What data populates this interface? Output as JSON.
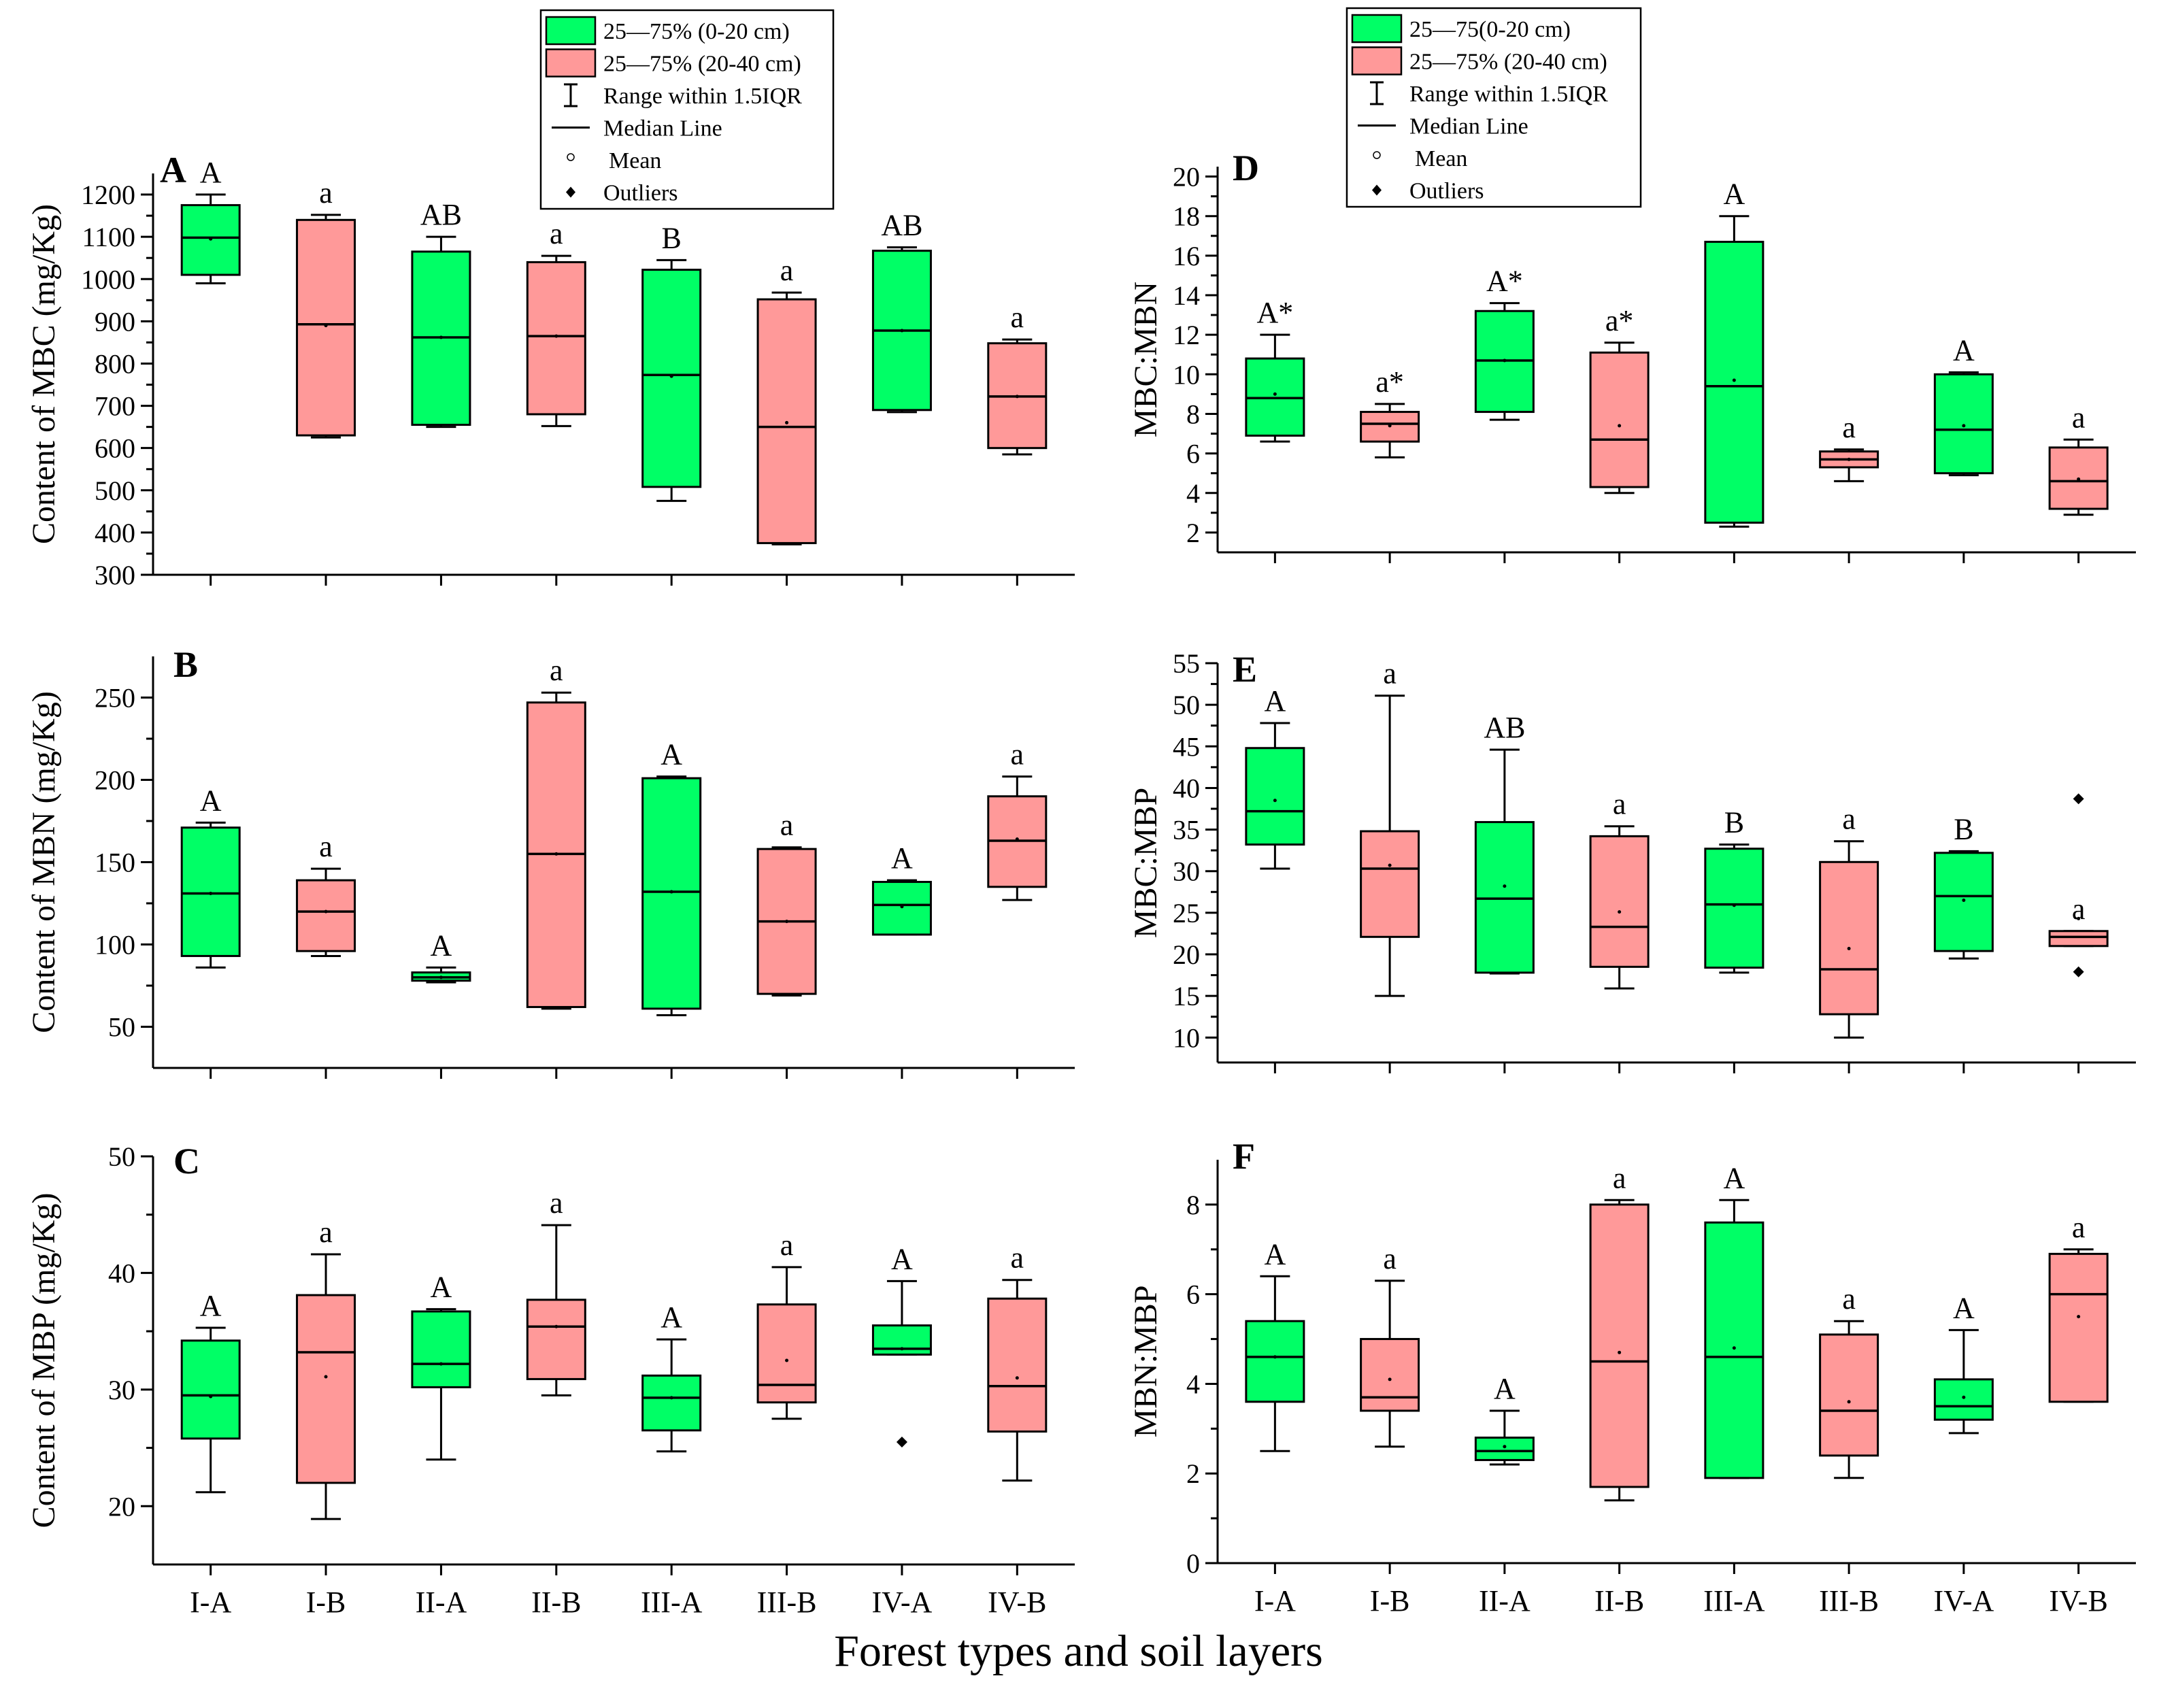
{
  "colors": {
    "green": "#00ff66",
    "pink": "#ff9999",
    "ink": "#000000"
  },
  "x_axis_title": "Forest types and soil layers",
  "legends": [
    {
      "id": "left",
      "items": [
        {
          "kind": "box",
          "color": "#00ff66",
          "label": "25—75% (0-20 cm)"
        },
        {
          "kind": "box",
          "color": "#ff9999",
          "label": "25—75% (20-40 cm)"
        },
        {
          "kind": "range",
          "label": "Range within 1.5IQR"
        },
        {
          "kind": "median",
          "label": "Median Line"
        },
        {
          "kind": "mean",
          "label": "Mean"
        },
        {
          "kind": "outlier",
          "label": "Outliers"
        }
      ]
    },
    {
      "id": "right",
      "items": [
        {
          "kind": "box",
          "color": "#00ff66",
          "label": "25—75(0-20 cm)"
        },
        {
          "kind": "box",
          "color": "#ff9999",
          "label": "25—75% (20-40 cm)"
        },
        {
          "kind": "range",
          "label": "Range within 1.5IQR"
        },
        {
          "kind": "median",
          "label": "Median Line"
        },
        {
          "kind": "mean",
          "label": "Mean"
        },
        {
          "kind": "outlier",
          "label": "Outliers"
        }
      ]
    }
  ],
  "chart_data": [
    {
      "type": "box",
      "panel": "A",
      "ylabel": "Content of MBC (mg/Kg)",
      "ylim": [
        300,
        1250
      ],
      "yticks": [
        300,
        400,
        500,
        600,
        700,
        800,
        900,
        1000,
        1100,
        1200
      ],
      "categories": [
        "I-A",
        "I-B",
        "II-A",
        "II-B",
        "III-A",
        "III-B",
        "IV-A",
        "IV-B"
      ],
      "show_xticklabels": false,
      "boxes": [
        {
          "layer": "0-20 cm",
          "whisker_low": 990,
          "q1": 1010,
          "median": 1098,
          "q3": 1175,
          "whisker_high": 1200,
          "mean": 1095,
          "letter": "A"
        },
        {
          "layer": "20-40 cm",
          "whisker_low": 625,
          "q1": 630,
          "median": 893,
          "q3": 1140,
          "whisker_high": 1152,
          "mean": 890,
          "letter": "a"
        },
        {
          "layer": "0-20 cm",
          "whisker_low": 650,
          "q1": 655,
          "median": 862,
          "q3": 1065,
          "whisker_high": 1100,
          "mean": 862,
          "letter": "AB"
        },
        {
          "layer": "20-40 cm",
          "whisker_low": 652,
          "q1": 680,
          "median": 865,
          "q3": 1040,
          "whisker_high": 1055,
          "mean": 865,
          "letter": "a"
        },
        {
          "layer": "0-20 cm",
          "whisker_low": 475,
          "q1": 508,
          "median": 773,
          "q3": 1022,
          "whisker_high": 1045,
          "mean": 770,
          "letter": "B"
        },
        {
          "layer": "20-40 cm",
          "whisker_low": 372,
          "q1": 375,
          "median": 650,
          "q3": 952,
          "whisker_high": 968,
          "mean": 660,
          "letter": "a"
        },
        {
          "layer": "0-20 cm",
          "whisker_low": 685,
          "q1": 690,
          "median": 878,
          "q3": 1067,
          "whisker_high": 1075,
          "mean": 878,
          "letter": "AB"
        },
        {
          "layer": "20-40 cm",
          "whisker_low": 585,
          "q1": 600,
          "median": 722,
          "q3": 848,
          "whisker_high": 857,
          "mean": 722,
          "letter": "a"
        }
      ]
    },
    {
      "type": "box",
      "panel": "B",
      "ylabel": "Content of MBN (mg/Kg)",
      "ylim": [
        25,
        275
      ],
      "yticks": [
        50,
        100,
        150,
        200,
        250
      ],
      "categories": [
        "I-A",
        "I-B",
        "II-A",
        "II-B",
        "III-A",
        "III-B",
        "IV-A",
        "IV-B"
      ],
      "show_xticklabels": false,
      "boxes": [
        {
          "layer": "0-20 cm",
          "whisker_low": 86,
          "q1": 93,
          "median": 131,
          "q3": 171,
          "whisker_high": 174,
          "mean": 131,
          "letter": "A"
        },
        {
          "layer": "20-40 cm",
          "whisker_low": 93,
          "q1": 96,
          "median": 120,
          "q3": 139,
          "whisker_high": 146,
          "mean": 120,
          "letter": "a"
        },
        {
          "layer": "0-20 cm",
          "whisker_low": 77,
          "q1": 78,
          "median": 80,
          "q3": 83,
          "whisker_high": 86,
          "mean": 80,
          "letter": "A"
        },
        {
          "layer": "20-40 cm",
          "whisker_low": 61,
          "q1": 62,
          "median": 155,
          "q3": 247,
          "whisker_high": 253,
          "mean": 155,
          "letter": "a"
        },
        {
          "layer": "0-20 cm",
          "whisker_low": 57,
          "q1": 61,
          "median": 132,
          "q3": 201,
          "whisker_high": 202,
          "mean": 132,
          "letter": "A"
        },
        {
          "layer": "20-40 cm",
          "whisker_low": 69,
          "q1": 70,
          "median": 114,
          "q3": 158,
          "whisker_high": 159,
          "mean": 114,
          "letter": "a"
        },
        {
          "layer": "0-20 cm",
          "whisker_low": 106,
          "q1": 106,
          "median": 124,
          "q3": 138,
          "whisker_high": 139,
          "mean": 123,
          "letter": "A"
        },
        {
          "layer": "20-40 cm",
          "whisker_low": 127,
          "q1": 135,
          "median": 163,
          "q3": 190,
          "whisker_high": 202,
          "mean": 164,
          "letter": "a"
        }
      ]
    },
    {
      "type": "box",
      "panel": "C",
      "ylabel": "Content of MBP (mg/Kg)",
      "ylim": [
        15,
        50
      ],
      "yticks": [
        20,
        30,
        40,
        50
      ],
      "categories": [
        "I-A",
        "I-B",
        "II-A",
        "II-B",
        "III-A",
        "III-B",
        "IV-A",
        "IV-B"
      ],
      "show_xticklabels": true,
      "boxes": [
        {
          "layer": "0-20 cm",
          "whisker_low": 21.2,
          "q1": 25.8,
          "median": 29.5,
          "q3": 34.2,
          "whisker_high": 35.3,
          "mean": 29.4,
          "letter": "A"
        },
        {
          "layer": "20-40 cm",
          "whisker_low": 18.9,
          "q1": 22.0,
          "median": 33.2,
          "q3": 38.1,
          "whisker_high": 41.6,
          "mean": 31.1,
          "letter": "a"
        },
        {
          "layer": "0-20 cm",
          "whisker_low": 24.0,
          "q1": 30.2,
          "median": 32.2,
          "q3": 36.7,
          "whisker_high": 36.9,
          "mean": 32.2,
          "letter": "A"
        },
        {
          "layer": "20-40 cm",
          "whisker_low": 29.5,
          "q1": 30.9,
          "median": 35.4,
          "q3": 37.7,
          "whisker_high": 44.1,
          "mean": 35.4,
          "letter": "a"
        },
        {
          "layer": "0-20 cm",
          "whisker_low": 24.7,
          "q1": 26.5,
          "median": 29.3,
          "q3": 31.2,
          "whisker_high": 34.3,
          "mean": 29.3,
          "letter": "A"
        },
        {
          "layer": "20-40 cm",
          "whisker_low": 27.5,
          "q1": 28.9,
          "median": 30.4,
          "q3": 37.3,
          "whisker_high": 40.5,
          "mean": 32.5,
          "letter": "a"
        },
        {
          "layer": "0-20 cm",
          "whisker_low": 33.0,
          "q1": 33.0,
          "median": 33.5,
          "q3": 35.5,
          "whisker_high": 39.3,
          "mean": 33.5,
          "outliers": [
            25.5
          ],
          "letter": "A"
        },
        {
          "layer": "20-40 cm",
          "whisker_low": 22.2,
          "q1": 26.4,
          "median": 30.3,
          "q3": 37.8,
          "whisker_high": 39.4,
          "mean": 31.0,
          "letter": "a"
        }
      ]
    },
    {
      "type": "box",
      "panel": "D",
      "ylabel": "MBC:MBN",
      "ylim": [
        1,
        20.5
      ],
      "yticks": [
        2,
        4,
        6,
        8,
        10,
        12,
        14,
        16,
        18,
        20
      ],
      "categories": [
        "I-A",
        "I-B",
        "II-A",
        "II-B",
        "III-A",
        "III-B",
        "IV-A",
        "IV-B"
      ],
      "show_xticklabels": false,
      "boxes": [
        {
          "layer": "0-20 cm",
          "whisker_low": 6.6,
          "q1": 6.9,
          "median": 8.8,
          "q3": 10.8,
          "whisker_high": 12.0,
          "mean": 9.0,
          "letter": "A*"
        },
        {
          "layer": "20-40 cm",
          "whisker_low": 5.8,
          "q1": 6.6,
          "median": 7.5,
          "q3": 8.1,
          "whisker_high": 8.5,
          "mean": 7.4,
          "letter": "a*"
        },
        {
          "layer": "0-20 cm",
          "whisker_low": 7.7,
          "q1": 8.1,
          "median": 10.7,
          "q3": 13.2,
          "whisker_high": 13.6,
          "mean": 10.7,
          "letter": "A*"
        },
        {
          "layer": "20-40 cm",
          "whisker_low": 4.0,
          "q1": 4.3,
          "median": 6.7,
          "q3": 11.1,
          "whisker_high": 11.6,
          "mean": 7.4,
          "letter": "a*"
        },
        {
          "layer": "0-20 cm",
          "whisker_low": 2.3,
          "q1": 2.5,
          "median": 9.4,
          "q3": 16.7,
          "whisker_high": 18.0,
          "mean": 9.7,
          "letter": "A"
        },
        {
          "layer": "20-40 cm",
          "whisker_low": 4.6,
          "q1": 5.3,
          "median": 5.7,
          "q3": 6.1,
          "whisker_high": 6.2,
          "mean": 5.7,
          "letter": "a"
        },
        {
          "layer": "0-20 cm",
          "whisker_low": 4.9,
          "q1": 5.0,
          "median": 7.2,
          "q3": 10.0,
          "whisker_high": 10.1,
          "mean": 7.4,
          "letter": "A"
        },
        {
          "layer": "20-40 cm",
          "whisker_low": 2.9,
          "q1": 3.2,
          "median": 4.6,
          "q3": 6.3,
          "whisker_high": 6.7,
          "mean": 4.7,
          "letter": "a"
        }
      ]
    },
    {
      "type": "box",
      "panel": "E",
      "ylabel": "MBC:MBP",
      "ylim": [
        7,
        55
      ],
      "yticks": [
        10,
        15,
        20,
        25,
        30,
        35,
        40,
        45,
        50,
        55
      ],
      "categories": [
        "I-A",
        "I-B",
        "II-A",
        "II-B",
        "III-A",
        "III-B",
        "IV-A",
        "IV-B"
      ],
      "show_xticklabels": false,
      "boxes": [
        {
          "layer": "0-20 cm",
          "whisker_low": 30.3,
          "q1": 33.2,
          "median": 37.2,
          "q3": 44.8,
          "whisker_high": 47.8,
          "mean": 38.5,
          "letter": "A"
        },
        {
          "layer": "20-40 cm",
          "whisker_low": 15.0,
          "q1": 22.1,
          "median": 30.3,
          "q3": 34.8,
          "whisker_high": 51.1,
          "mean": 30.7,
          "letter": "a"
        },
        {
          "layer": "0-20 cm",
          "whisker_low": 17.7,
          "q1": 17.8,
          "median": 26.7,
          "q3": 35.9,
          "whisker_high": 44.6,
          "mean": 28.2,
          "letter": "AB"
        },
        {
          "layer": "20-40 cm",
          "whisker_low": 15.9,
          "q1": 18.5,
          "median": 23.3,
          "q3": 34.2,
          "whisker_high": 35.4,
          "mean": 25.1,
          "letter": "a"
        },
        {
          "layer": "0-20 cm",
          "whisker_low": 17.8,
          "q1": 18.4,
          "median": 26.0,
          "q3": 32.7,
          "whisker_high": 33.2,
          "mean": 25.9,
          "letter": "B"
        },
        {
          "layer": "20-40 cm",
          "whisker_low": 10.0,
          "q1": 12.8,
          "median": 18.2,
          "q3": 31.1,
          "whisker_high": 33.6,
          "mean": 20.7,
          "letter": "a"
        },
        {
          "layer": "0-20 cm",
          "whisker_low": 19.5,
          "q1": 20.4,
          "median": 27.0,
          "q3": 32.2,
          "whisker_high": 32.4,
          "mean": 26.5,
          "letter": "B"
        },
        {
          "layer": "20-40 cm",
          "whisker_low": 21.0,
          "q1": 21.0,
          "median": 22.1,
          "q3": 22.8,
          "whisker_high": 22.8,
          "mean": 24.3,
          "outliers": [
            38.7,
            17.9
          ],
          "letter": "a"
        }
      ]
    },
    {
      "type": "box",
      "panel": "F",
      "ylabel": "MBN:MBP",
      "ylim": [
        0,
        9
      ],
      "yticks": [
        0,
        2,
        4,
        6,
        8
      ],
      "categories": [
        "I-A",
        "I-B",
        "II-A",
        "II-B",
        "III-A",
        "III-B",
        "IV-A",
        "IV-B"
      ],
      "show_xticklabels": true,
      "boxes": [
        {
          "layer": "0-20 cm",
          "whisker_low": 2.5,
          "q1": 3.6,
          "median": 4.6,
          "q3": 5.4,
          "whisker_high": 6.4,
          "mean": 4.6,
          "letter": "A"
        },
        {
          "layer": "20-40 cm",
          "whisker_low": 2.6,
          "q1": 3.4,
          "median": 3.7,
          "q3": 5.0,
          "whisker_high": 6.3,
          "mean": 4.1,
          "letter": "a"
        },
        {
          "layer": "0-20 cm",
          "whisker_low": 2.2,
          "q1": 2.3,
          "median": 2.5,
          "q3": 2.8,
          "whisker_high": 3.4,
          "mean": 2.6,
          "letter": "A"
        },
        {
          "layer": "20-40 cm",
          "whisker_low": 1.4,
          "q1": 1.7,
          "median": 4.5,
          "q3": 8.0,
          "whisker_high": 8.1,
          "mean": 4.7,
          "letter": "a"
        },
        {
          "layer": "0-20 cm",
          "whisker_low": 1.9,
          "q1": 1.9,
          "median": 4.6,
          "q3": 7.6,
          "whisker_high": 8.1,
          "mean": 4.8,
          "letter": "A"
        },
        {
          "layer": "20-40 cm",
          "whisker_low": 1.9,
          "q1": 2.4,
          "median": 3.4,
          "q3": 5.1,
          "whisker_high": 5.4,
          "mean": 3.6,
          "letter": "a"
        },
        {
          "layer": "0-20 cm",
          "whisker_low": 2.9,
          "q1": 3.2,
          "median": 3.5,
          "q3": 4.1,
          "whisker_high": 5.2,
          "mean": 3.7,
          "letter": "A"
        },
        {
          "layer": "20-40 cm",
          "whisker_low": 3.6,
          "q1": 3.6,
          "median": 6.0,
          "q3": 6.9,
          "whisker_high": 7.0,
          "mean": 5.5,
          "letter": "a"
        }
      ]
    }
  ]
}
